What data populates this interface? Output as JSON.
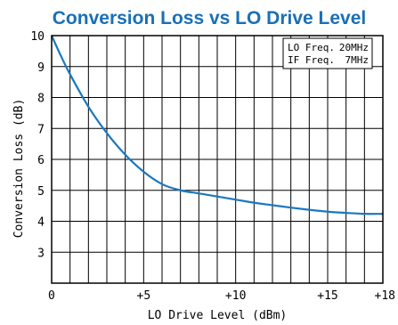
{
  "chart_data": {
    "type": "line",
    "title": "Conversion Loss vs LO Drive Level",
    "xlabel": "LO Drive Level (dBm)",
    "ylabel": "Conversion Loss (dB)",
    "xlim": [
      0,
      18
    ],
    "ylim": [
      2,
      10
    ],
    "x_ticks": [
      0,
      5,
      10,
      15,
      18
    ],
    "x_tick_labels": [
      "0",
      "+5",
      "+10",
      "+15",
      "+18"
    ],
    "y_ticks": [
      3,
      4,
      5,
      6,
      7,
      8,
      9,
      10
    ],
    "y_tick_labels": [
      "3",
      "4",
      "5",
      "6",
      "7",
      "8",
      "9",
      "10"
    ],
    "grid": true,
    "legend_position": "top-right",
    "annotation": [
      {
        "label": "LO Freq.",
        "value": "20MHz"
      },
      {
        "label": "IF Freq.",
        "value": "7MHz"
      }
    ],
    "line_color": "#1a78bf",
    "title_color": "#1a6fb5",
    "series": [
      {
        "x": [
          0,
          0.5,
          1,
          2,
          3,
          4,
          5,
          6,
          7,
          8,
          9,
          10,
          11,
          12,
          13,
          14,
          15,
          16,
          17,
          18
        ],
        "y": [
          10.0,
          9.35,
          8.75,
          7.7,
          6.85,
          6.15,
          5.6,
          5.2,
          5.0,
          4.9,
          4.8,
          4.7,
          4.6,
          4.52,
          4.44,
          4.37,
          4.31,
          4.27,
          4.24,
          4.24
        ]
      }
    ]
  }
}
